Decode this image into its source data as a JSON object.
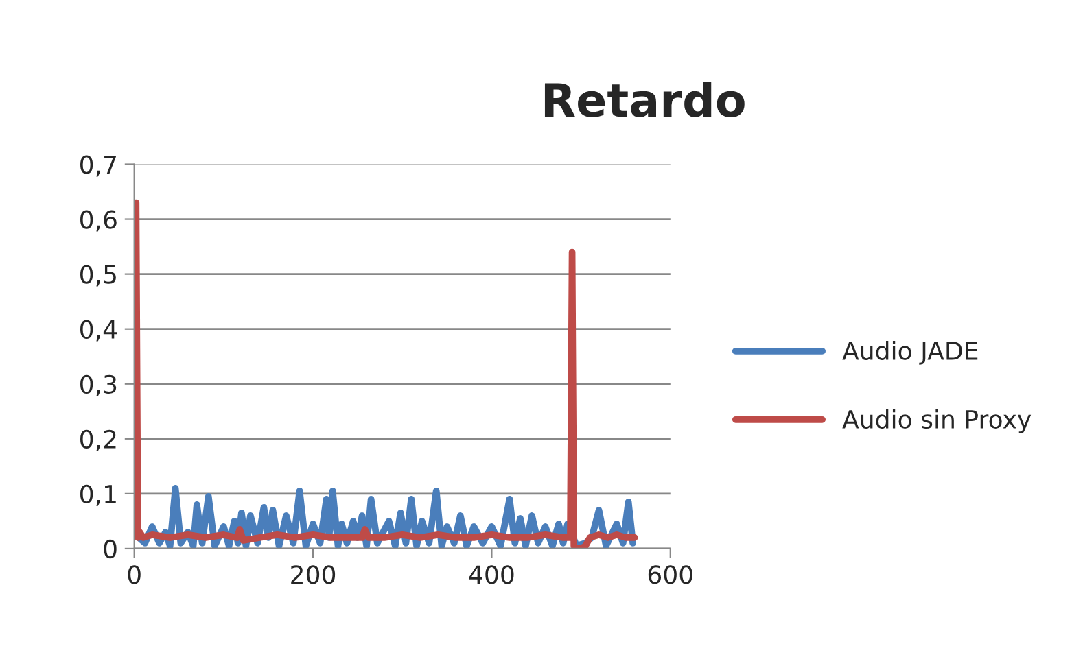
{
  "chart_data": {
    "type": "line",
    "title": "Retardo",
    "xlim": [
      0,
      600
    ],
    "xticks": [
      0,
      200,
      400,
      600
    ],
    "ylim": [
      0,
      0.7
    ],
    "yticks": [
      {
        "value": 0,
        "label": "0"
      },
      {
        "value": 0.1,
        "label": "0,1"
      },
      {
        "value": 0.2,
        "label": "0,2"
      },
      {
        "value": 0.3,
        "label": "0,3"
      },
      {
        "value": 0.4,
        "label": "0,4"
      },
      {
        "value": 0.5,
        "label": "0,5"
      },
      {
        "value": 0.6,
        "label": "0,6"
      },
      {
        "value": 0.7,
        "label": "0,7"
      }
    ],
    "grid": "y",
    "legend": "right",
    "marker": "none",
    "line_style": "solid",
    "series": [
      {
        "name": "Audio JADE",
        "color": "#4a7ebb",
        "x": [
          5,
          12,
          20,
          28,
          35,
          40,
          46,
          52,
          60,
          66,
          70,
          76,
          83,
          90,
          100,
          106,
          112,
          116,
          120,
          125,
          130,
          138,
          145,
          150,
          155,
          162,
          170,
          178,
          185,
          192,
          200,
          208,
          215,
          218,
          222,
          228,
          232,
          238,
          245,
          250,
          255,
          260,
          265,
          272,
          285,
          292,
          298,
          304,
          310,
          316,
          322,
          330,
          338,
          344,
          350,
          358,
          365,
          372,
          380,
          390,
          400,
          410,
          420,
          426,
          432,
          438,
          445,
          452,
          460,
          468,
          475,
          480,
          485,
          495,
          505,
          512,
          520,
          528,
          540,
          547,
          553,
          558
        ],
        "values": [
          0.02,
          0.01,
          0.04,
          0.01,
          0.03,
          0.005,
          0.11,
          0.01,
          0.03,
          0.005,
          0.08,
          0.01,
          0.095,
          0.005,
          0.04,
          0.005,
          0.05,
          0.01,
          0.065,
          0.005,
          0.06,
          0.01,
          0.075,
          0.02,
          0.07,
          0.005,
          0.06,
          0.01,
          0.105,
          0.005,
          0.045,
          0.01,
          0.09,
          0.02,
          0.105,
          0.005,
          0.045,
          0.01,
          0.05,
          0.02,
          0.06,
          0.005,
          0.09,
          0.01,
          0.05,
          0.005,
          0.065,
          0.01,
          0.09,
          0.005,
          0.05,
          0.01,
          0.105,
          0.005,
          0.04,
          0.01,
          0.06,
          0.005,
          0.04,
          0.01,
          0.04,
          0.005,
          0.09,
          0.01,
          0.055,
          0.005,
          0.06,
          0.01,
          0.04,
          0.005,
          0.045,
          0.01,
          0.045,
          0.005,
          0.01,
          0.02,
          0.07,
          0.005,
          0.045,
          0.01,
          0.085,
          0.01
        ]
      },
      {
        "name": "Audio sin Proxy",
        "color": "#be4b48",
        "x": [
          1,
          2,
          4,
          6,
          10,
          20,
          40,
          60,
          80,
          100,
          115,
          118,
          122,
          140,
          160,
          180,
          200,
          220,
          240,
          255,
          258,
          262,
          280,
          300,
          320,
          340,
          360,
          380,
          400,
          420,
          440,
          460,
          480,
          488,
          490,
          492,
          494,
          500,
          505,
          510,
          520,
          530,
          540,
          550,
          560
        ],
        "values": [
          0.03,
          0.63,
          0.02,
          0.03,
          0.02,
          0.025,
          0.02,
          0.025,
          0.02,
          0.025,
          0.02,
          0.035,
          0.015,
          0.02,
          0.025,
          0.02,
          0.025,
          0.02,
          0.02,
          0.02,
          0.035,
          0.02,
          0.02,
          0.025,
          0.02,
          0.025,
          0.02,
          0.02,
          0.025,
          0.02,
          0.02,
          0.025,
          0.02,
          0.02,
          0.54,
          0.005,
          0,
          0,
          0.005,
          0.02,
          0.025,
          0.02,
          0.025,
          0.02,
          0.02
        ]
      }
    ]
  }
}
